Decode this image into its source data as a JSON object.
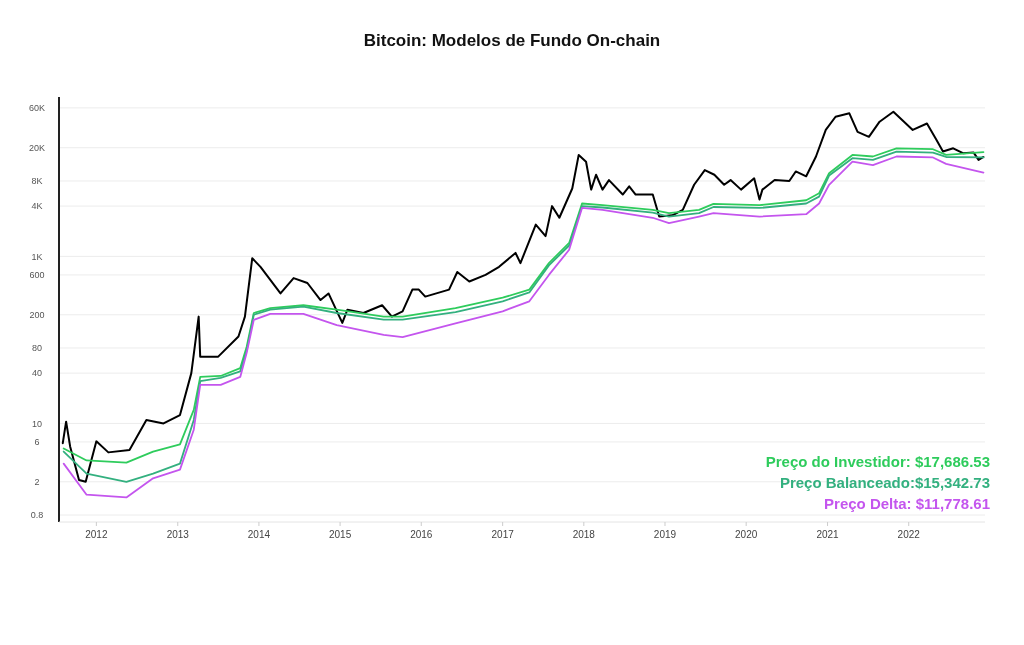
{
  "chart_data": {
    "type": "line",
    "title": "Bitcoin: Modelos de Fundo On-chain",
    "log": "y",
    "grid": "y",
    "legend": "bottom right",
    "marker": "none",
    "line_style": "solid",
    "xlim": [
      "2011-07-17",
      "2022-12-10"
    ],
    "xticks": [
      "2012",
      "2013",
      "2014",
      "2015",
      "2016",
      "2017",
      "2018",
      "2019",
      "2020",
      "2021",
      "2022"
    ],
    "ylim": [
      0.66,
      81000
    ],
    "yticks": [
      {
        "value": 0.8,
        "label": "0.8"
      },
      2,
      6,
      10,
      40,
      80,
      200,
      600,
      {
        "value": 1000,
        "label": "1K"
      },
      {
        "value": 4000,
        "label": "4K"
      },
      {
        "value": 8000,
        "label": "8K"
      },
      {
        "value": 20000,
        "label": "20K"
      },
      {
        "value": 60000,
        "label": "60K"
      }
    ],
    "x": [
      "2011-08-07",
      "2011-11-18",
      "2012-05-15",
      "2012-09-12",
      "2013-01-11",
      "2013-03-14",
      "2013-04-12",
      "2013-07-13",
      "2013-10-09",
      "2013-11-07",
      "2013-12-09",
      "2014-02-21",
      "2014-07-20",
      "2014-12-17",
      "2015-07-16",
      "2015-10-09",
      "2016-06-03",
      "2017-01-01",
      "2017-05-01",
      "2017-07-28",
      "2017-10-27",
      "2017-12-24",
      "2018-03-26",
      "2018-11-07",
      "2019-01-19",
      "2019-06-03",
      "2019-08-07",
      "2020-03-01",
      "2020-09-27",
      "2020-11-24",
      "2021-01-08",
      "2021-04-23",
      "2021-07-24",
      "2021-11-07",
      "2022-04-20",
      "2022-06-18",
      "2022-12-03"
    ],
    "series": [
      {
        "color": "#000000",
        "x": [
          "2011-08-03",
          "2011-08-18",
          "2011-09-05",
          "2011-10-15",
          "2011-11-14",
          "2012-01-01",
          "2012-02-24",
          "2012-05-29",
          "2012-08-13",
          "2012-10-29",
          "2013-01-11",
          "2013-03-03",
          "2013-04-05",
          "2013-04-12",
          "2013-07-02",
          "2013-10-01",
          "2013-10-30",
          "2013-12-02",
          "2014-01-08",
          "2014-04-08",
          "2014-06-06",
          "2014-08-07",
          "2014-10-05",
          "2014-11-10",
          "2015-01-11",
          "2015-02-03",
          "2015-04-16",
          "2015-07-09",
          "2015-08-22",
          "2015-10-09",
          "2015-11-22",
          "2015-12-21",
          "2016-01-19",
          "2016-05-05",
          "2016-06-11",
          "2016-08-04",
          "2016-10-16",
          "2016-12-16",
          "2017-02-28",
          "2017-03-22",
          "2017-05-30",
          "2017-07-13",
          "2017-08-11",
          "2017-09-13",
          "2017-11-10",
          "2017-12-09",
          "2018-01-11",
          "2018-02-03",
          "2018-02-25",
          "2018-03-26",
          "2018-04-24",
          "2018-06-25",
          "2018-07-24",
          "2018-08-22",
          "2018-11-07",
          "2018-12-06",
          "2019-02-03",
          "2019-03-22",
          "2019-05-12",
          "2019-06-29",
          "2019-08-11",
          "2019-09-24",
          "2019-10-23",
          "2019-12-09",
          "2020-02-06",
          "2020-03-01",
          "2020-03-14",
          "2020-05-08",
          "2020-07-13",
          "2020-08-11",
          "2020-09-27",
          "2020-11-10",
          "2020-12-24",
          "2021-02-06",
          "2021-04-09",
          "2021-05-16",
          "2021-07-06",
          "2021-08-23",
          "2021-10-24",
          "2022-01-19",
          "2022-03-24",
          "2022-05-06",
          "2022-06-04",
          "2022-07-20",
          "2022-09-02",
          "2022-10-20",
          "2022-11-11",
          "2022-12-03"
        ],
        "values": [
          5.8,
          10.5,
          5.3,
          2.1,
          2.0,
          6.1,
          4.5,
          4.8,
          11,
          10,
          12.6,
          40,
          190,
          63,
          63,
          110,
          190,
          950,
          750,
          360,
          550,
          480,
          300,
          360,
          160,
          230,
          210,
          260,
          190,
          220,
          400,
          400,
          330,
          400,
          650,
          500,
          600,
          750,
          1100,
          830,
          2400,
          1750,
          4000,
          2900,
          6500,
          16400,
          13600,
          6300,
          9500,
          6300,
          8200,
          5500,
          6900,
          5500,
          5500,
          3000,
          3100,
          3600,
          7200,
          10800,
          9500,
          7200,
          8200,
          6300,
          8600,
          4800,
          6300,
          8200,
          8000,
          10400,
          9100,
          15700,
          32700,
          47000,
          51700,
          31000,
          27000,
          41000,
          54000,
          32700,
          39000,
          24800,
          18000,
          19700,
          17200,
          17500,
          14300,
          15500
        ]
      },
      {
        "name": "Preço do Investidor: $17,686.53",
        "color": "#2ecc5c",
        "values": [
          5.0,
          3.6,
          3.4,
          4.6,
          5.6,
          14.5,
          36,
          37,
          46,
          83,
          210,
          240,
          260,
          230,
          190,
          190,
          240,
          320,
          400,
          830,
          1450,
          4300,
          4100,
          3600,
          3300,
          3600,
          4250,
          4100,
          4700,
          5700,
          9900,
          16400,
          15700,
          19700,
          19200,
          16400,
          17700
        ]
      },
      {
        "name": "Preço Balanceado:$15,342.73",
        "color": "#33b07f",
        "values": [
          4.6,
          2.5,
          2.0,
          2.5,
          3.3,
          11,
          32,
          35,
          42,
          75,
          200,
          230,
          250,
          210,
          175,
          175,
          215,
          290,
          370,
          780,
          1350,
          4000,
          3850,
          3350,
          3000,
          3300,
          3900,
          3800,
          4300,
          5200,
          9300,
          15000,
          14300,
          18000,
          17500,
          15500,
          15300
        ]
      },
      {
        "name": "Preço Delta: $11,778.61",
        "color": "#c455ee",
        "values": [
          3.3,
          1.4,
          1.3,
          2.2,
          2.8,
          8.4,
          29,
          29,
          36,
          70,
          174,
          205,
          205,
          150,
          115,
          108,
          158,
          220,
          290,
          600,
          1200,
          3800,
          3600,
          2900,
          2500,
          3000,
          3300,
          3000,
          3200,
          4300,
          7200,
          13600,
          12400,
          15700,
          15300,
          12800,
          10100
        ]
      }
    ]
  }
}
